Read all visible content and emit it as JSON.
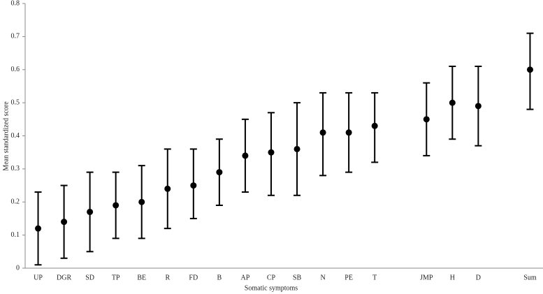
{
  "chart_data": {
    "type": "errorbar",
    "x_label": "Somatic symptoms",
    "y_label": "Mean standardized score",
    "categories": [
      "UP",
      "DGR",
      "SD",
      "TP",
      "BE",
      "R",
      "FD",
      "B",
      "AP",
      "CP",
      "SB",
      "N",
      "PE",
      "T",
      null,
      "JMP",
      "H",
      "D",
      null,
      "Sum"
    ],
    "values": [
      0.12,
      0.14,
      0.17,
      0.19,
      0.2,
      0.24,
      0.25,
      0.29,
      0.34,
      0.35,
      0.36,
      0.41,
      0.41,
      0.43,
      null,
      0.45,
      0.5,
      0.49,
      null,
      0.6
    ],
    "lower": [
      0.01,
      0.03,
      0.05,
      0.09,
      0.09,
      0.12,
      0.15,
      0.19,
      0.23,
      0.22,
      0.22,
      0.28,
      0.29,
      0.32,
      null,
      0.34,
      0.39,
      0.37,
      null,
      0.48
    ],
    "upper": [
      0.23,
      0.25,
      0.29,
      0.29,
      0.31,
      0.36,
      0.36,
      0.39,
      0.45,
      0.47,
      0.5,
      0.53,
      0.53,
      0.53,
      null,
      0.56,
      0.61,
      0.61,
      null,
      0.71
    ],
    "color": "#000000",
    "ylim": [
      0,
      0.8
    ],
    "yticks": [
      0,
      0.1,
      0.2,
      0.3,
      0.4,
      0.5,
      0.6,
      0.7,
      0.8
    ],
    "grid": false
  }
}
